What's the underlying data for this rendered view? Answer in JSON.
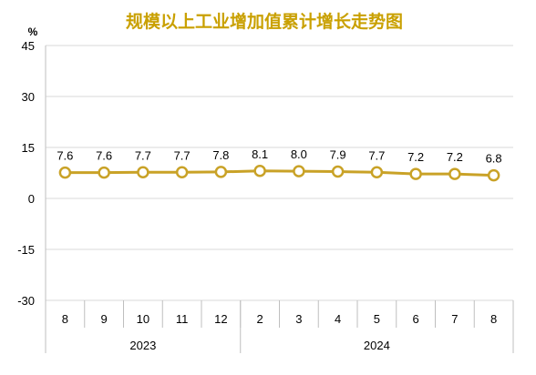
{
  "chart_data": {
    "type": "line",
    "title": "规模以上工业增加值累计增长走势图",
    "unit_label": "%",
    "categories": [
      "8",
      "9",
      "10",
      "11",
      "12",
      "2",
      "3",
      "4",
      "5",
      "6",
      "7",
      "8"
    ],
    "groups": [
      {
        "label": "2023",
        "count": 5
      },
      {
        "label": "2024",
        "count": 7
      }
    ],
    "series": [
      {
        "values": [
          7.6,
          7.6,
          7.7,
          7.7,
          7.8,
          8.1,
          8.0,
          7.9,
          7.7,
          7.2,
          7.2,
          6.8
        ],
        "labels": [
          "7.6",
          "7.6",
          "7.7",
          "7.7",
          "7.8",
          "8.1",
          "8.0",
          "7.9",
          "7.7",
          "7.2",
          "7.2",
          "6.8"
        ]
      }
    ],
    "ylim": [
      -30,
      45
    ],
    "yticks": [
      -30,
      -15,
      0,
      15,
      30,
      45
    ],
    "grid": true,
    "legend": "none",
    "colors": {
      "line": "#c9a227",
      "marker_fill": "#ffffff",
      "title": "#c9a000"
    }
  }
}
